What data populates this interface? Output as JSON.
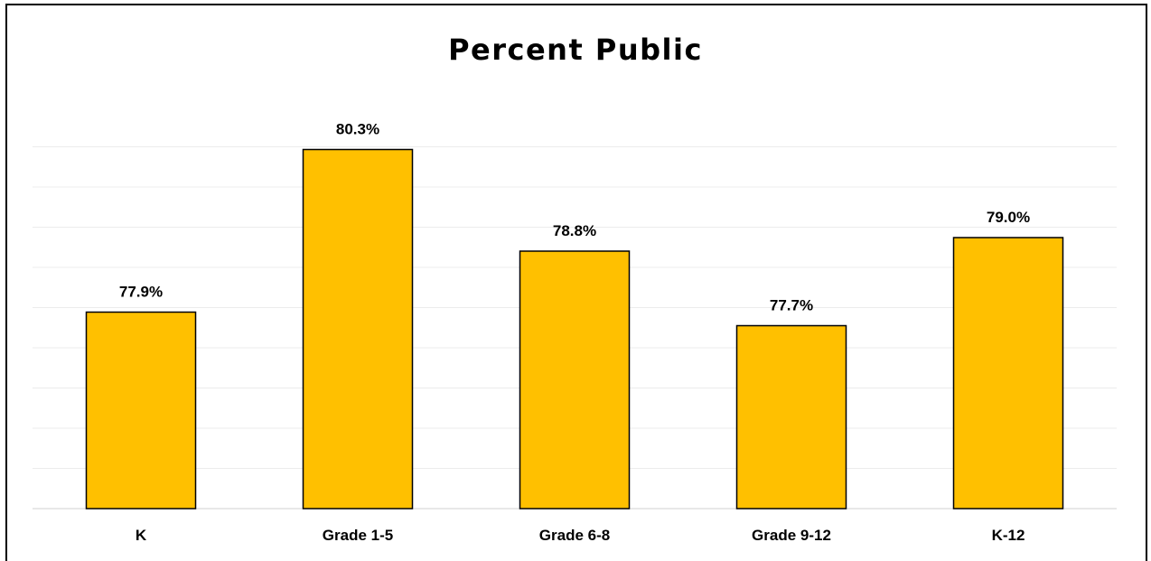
{
  "chart_data": {
    "type": "bar",
    "title": "Percent Public",
    "categories": [
      "K",
      "Grade 1-5",
      "Grade 6-8",
      "Grade 9-12",
      "K-12"
    ],
    "values": [
      77.9,
      80.3,
      78.8,
      77.7,
      79.0
    ],
    "data_labels": [
      "77.9%",
      "80.3%",
      "78.8%",
      "77.7%",
      "79.0%"
    ],
    "xlabel": "",
    "ylabel": "",
    "ylim": [
      75,
      80.7
    ],
    "grid": true,
    "legend": "none",
    "colors": {
      "bar_fill": "#FFC000",
      "bar_stroke": "#000000",
      "grid": "#ececec",
      "axis": "#d0d0d0"
    }
  }
}
